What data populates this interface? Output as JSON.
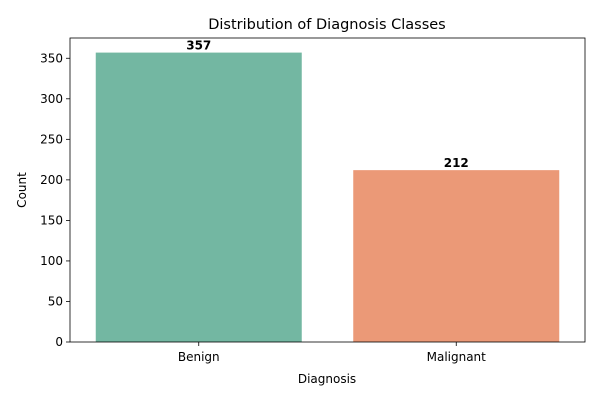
{
  "chart_data": {
    "type": "bar",
    "title": "Distribution of Diagnosis Classes",
    "xlabel": "Diagnosis",
    "ylabel": "Count",
    "categories": [
      "Benign",
      "Malignant"
    ],
    "values": [
      357,
      212
    ],
    "data_labels": [
      "357",
      "212"
    ],
    "colors": [
      "#73b7a2",
      "#eb9977"
    ],
    "ylim": [
      0,
      375
    ],
    "yticks": [
      0,
      50,
      100,
      150,
      200,
      250,
      300,
      350
    ],
    "grid": false,
    "legend": "none"
  }
}
